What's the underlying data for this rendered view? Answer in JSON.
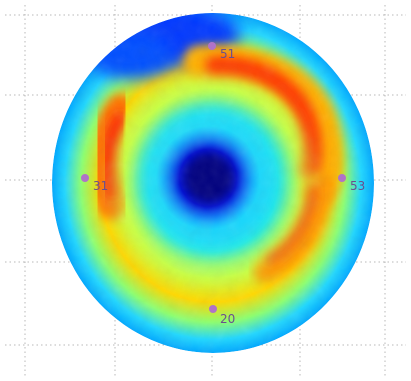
{
  "figure": {
    "background": "#ffffff",
    "grid": {
      "visible": true,
      "style": "dotted",
      "color": "#b8b8b8"
    },
    "colormap": {
      "name": "jet",
      "stops": [
        "#00007f",
        "#0000ff",
        "#0080ff",
        "#00ffff",
        "#80ff80",
        "#ffff00",
        "#ff8000",
        "#ff0000",
        "#7f0000"
      ]
    },
    "markers": [
      {
        "label": "51",
        "color": "#b073c8"
      },
      {
        "label": "20",
        "color": "#b073c8"
      },
      {
        "label": "31",
        "color": "#b073c8"
      },
      {
        "label": "53",
        "color": "#b073c8"
      }
    ]
  }
}
